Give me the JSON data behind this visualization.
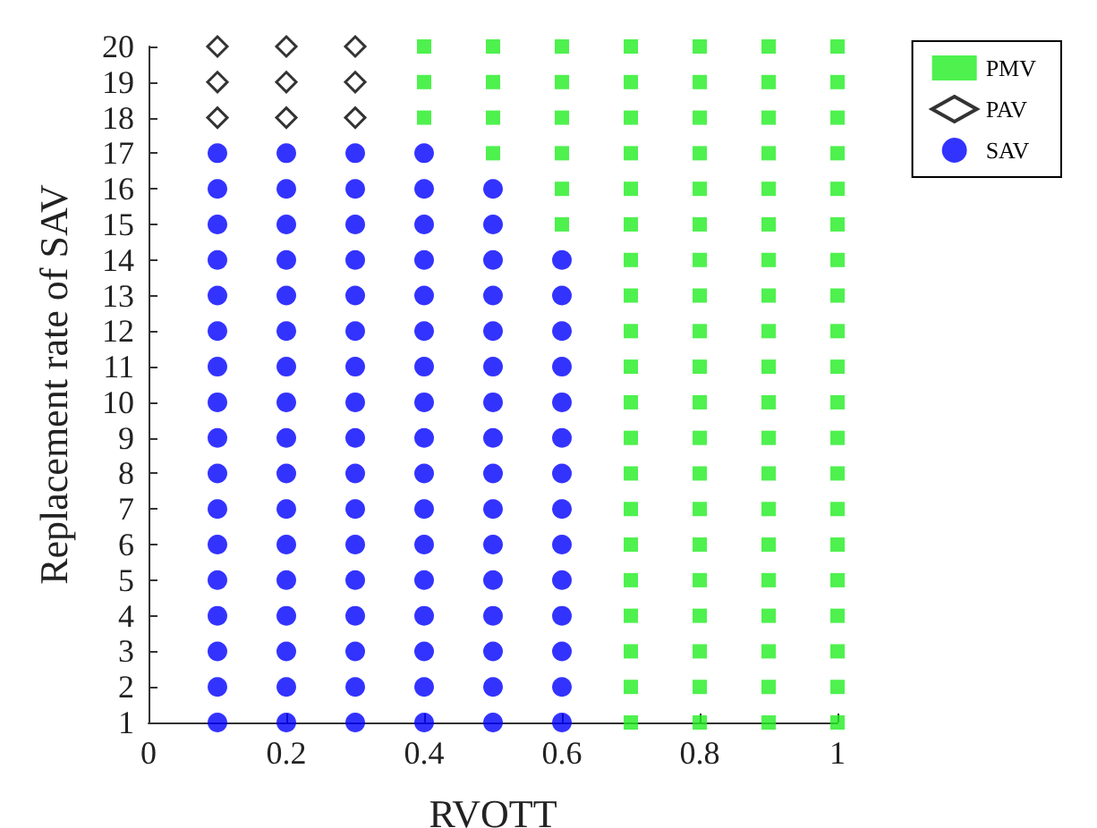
{
  "chart_data": {
    "type": "scatter",
    "xlabel": "RVOTT",
    "ylabel": "Replacement rate of SAV",
    "xlim": [
      0,
      1
    ],
    "xticks": [
      0,
      0.2,
      0.4,
      0.6,
      0.8,
      1
    ],
    "ylim": [
      1,
      20
    ],
    "yticks": [
      1,
      2,
      3,
      4,
      5,
      6,
      7,
      8,
      9,
      10,
      11,
      12,
      13,
      14,
      15,
      16,
      17,
      18,
      19,
      20
    ],
    "grid": false,
    "legend": "top right",
    "series": [
      {
        "name": "PMV",
        "color": "#22ee22",
        "marker": "square",
        "x": [
          0.4,
          0.4,
          0.4,
          0.5,
          0.5,
          0.5,
          0.5,
          0.6,
          0.6,
          0.6,
          0.6,
          0.6,
          0.6,
          0.7,
          0.7,
          0.7,
          0.7,
          0.7,
          0.7,
          0.7,
          0.7,
          0.7,
          0.7,
          0.7,
          0.7,
          0.7,
          0.7,
          0.7,
          0.7,
          0.7,
          0.7,
          0.7,
          0.7,
          0.8,
          0.8,
          0.8,
          0.8,
          0.8,
          0.8,
          0.8,
          0.8,
          0.8,
          0.8,
          0.8,
          0.8,
          0.8,
          0.8,
          0.8,
          0.8,
          0.8,
          0.8,
          0.8,
          0.8,
          0.9,
          0.9,
          0.9,
          0.9,
          0.9,
          0.9,
          0.9,
          0.9,
          0.9,
          0.9,
          0.9,
          0.9,
          0.9,
          0.9,
          0.9,
          0.9,
          0.9,
          0.9,
          0.9,
          0.9,
          1,
          1,
          1,
          1,
          1,
          1,
          1,
          1,
          1,
          1,
          1,
          1,
          1,
          1,
          1,
          1,
          1,
          1,
          1,
          1
        ],
        "values": [
          18,
          19,
          20,
          17,
          18,
          19,
          20,
          15,
          16,
          17,
          18,
          19,
          20,
          1,
          2,
          3,
          4,
          5,
          6,
          7,
          8,
          9,
          10,
          11,
          12,
          13,
          14,
          15,
          16,
          17,
          18,
          19,
          20,
          1,
          2,
          3,
          4,
          5,
          6,
          7,
          8,
          9,
          10,
          11,
          12,
          13,
          14,
          15,
          16,
          17,
          18,
          19,
          20,
          1,
          2,
          3,
          4,
          5,
          6,
          7,
          8,
          9,
          10,
          11,
          12,
          13,
          14,
          15,
          16,
          17,
          18,
          19,
          20,
          1,
          2,
          3,
          4,
          5,
          6,
          7,
          8,
          9,
          10,
          11,
          12,
          13,
          14,
          15,
          16,
          17,
          18,
          19,
          20
        ]
      },
      {
        "name": "PAV",
        "color": "#000000",
        "marker": "diamond",
        "x": [
          0.1,
          0.1,
          0.1,
          0.2,
          0.2,
          0.2,
          0.3,
          0.3,
          0.3
        ],
        "values": [
          18,
          19,
          20,
          18,
          19,
          20,
          18,
          19,
          20
        ]
      },
      {
        "name": "SAV",
        "color": "#0000ff",
        "marker": "circle",
        "x": [
          0.1,
          0.1,
          0.1,
          0.1,
          0.1,
          0.1,
          0.1,
          0.1,
          0.1,
          0.1,
          0.1,
          0.1,
          0.1,
          0.1,
          0.1,
          0.1,
          0.1,
          0.2,
          0.2,
          0.2,
          0.2,
          0.2,
          0.2,
          0.2,
          0.2,
          0.2,
          0.2,
          0.2,
          0.2,
          0.2,
          0.2,
          0.2,
          0.2,
          0.2,
          0.3,
          0.3,
          0.3,
          0.3,
          0.3,
          0.3,
          0.3,
          0.3,
          0.3,
          0.3,
          0.3,
          0.3,
          0.3,
          0.3,
          0.3,
          0.3,
          0.3,
          0.4,
          0.4,
          0.4,
          0.4,
          0.4,
          0.4,
          0.4,
          0.4,
          0.4,
          0.4,
          0.4,
          0.4,
          0.4,
          0.4,
          0.4,
          0.4,
          0.4,
          0.5,
          0.5,
          0.5,
          0.5,
          0.5,
          0.5,
          0.5,
          0.5,
          0.5,
          0.5,
          0.5,
          0.5,
          0.5,
          0.5,
          0.5,
          0.5,
          0.6,
          0.6,
          0.6,
          0.6,
          0.6,
          0.6,
          0.6,
          0.6,
          0.6,
          0.6,
          0.6,
          0.6,
          0.6,
          0.6
        ],
        "values": [
          1,
          2,
          3,
          4,
          5,
          6,
          7,
          8,
          9,
          10,
          11,
          12,
          13,
          14,
          15,
          16,
          17,
          1,
          2,
          3,
          4,
          5,
          6,
          7,
          8,
          9,
          10,
          11,
          12,
          13,
          14,
          15,
          16,
          17,
          1,
          2,
          3,
          4,
          5,
          6,
          7,
          8,
          9,
          10,
          11,
          12,
          13,
          14,
          15,
          16,
          17,
          1,
          2,
          3,
          4,
          5,
          6,
          7,
          8,
          9,
          10,
          11,
          12,
          13,
          14,
          15,
          16,
          17,
          1,
          2,
          3,
          4,
          5,
          6,
          7,
          8,
          9,
          10,
          11,
          12,
          13,
          14,
          15,
          16,
          1,
          2,
          3,
          4,
          5,
          6,
          7,
          8,
          9,
          10,
          11,
          12,
          13,
          14
        ]
      }
    ]
  }
}
